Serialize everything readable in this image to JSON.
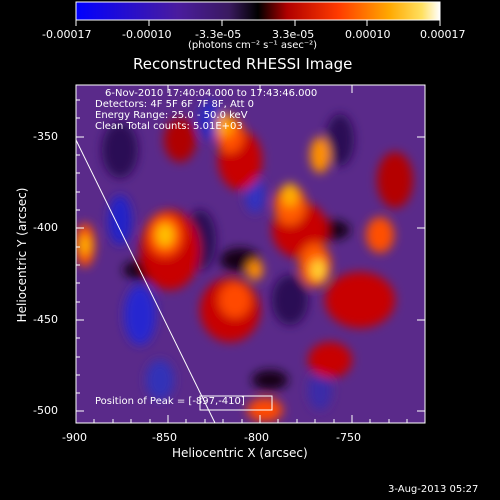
{
  "colorbar": {
    "tick_labels": [
      "-0.00017",
      "-0.00010",
      "-3.3e-05",
      "3.3e-05",
      "0.00010",
      "0.00017"
    ],
    "unit_label": "(photons cm⁻² s⁻¹ asec⁻²)",
    "colors": [
      "#0000ff",
      "#4b1a9c",
      "#5a2a8a",
      "#000000",
      "#c80000",
      "#ff4000",
      "#ff9a00",
      "#ffd020",
      "#ffffff"
    ]
  },
  "image": {
    "title": "Reconstructed RHESSI Image",
    "x_axis": {
      "label": "Heliocentric X (arcsec)",
      "ticks": [
        "-900",
        "-850",
        "-800",
        "-750"
      ]
    },
    "y_axis": {
      "label": "Heliocentric Y (arcsec)",
      "ticks": [
        "-350",
        "-400",
        "-450",
        "-500"
      ]
    },
    "info_lines": [
      "6-Nov-2010 17:40:04.000 to 17:43:46.000",
      "Detectors: 4F 5F 6F 7F 8F, Att 0",
      "Energy Range: 25.0 - 50.0 keV",
      "Clean    Total counts: 5.01E+03"
    ],
    "peak_label": "Position of Peak = [-897,-410]",
    "limb_icon": "solar-limb-line"
  },
  "footer": {
    "date": "3-Aug-2013 05:27"
  }
}
